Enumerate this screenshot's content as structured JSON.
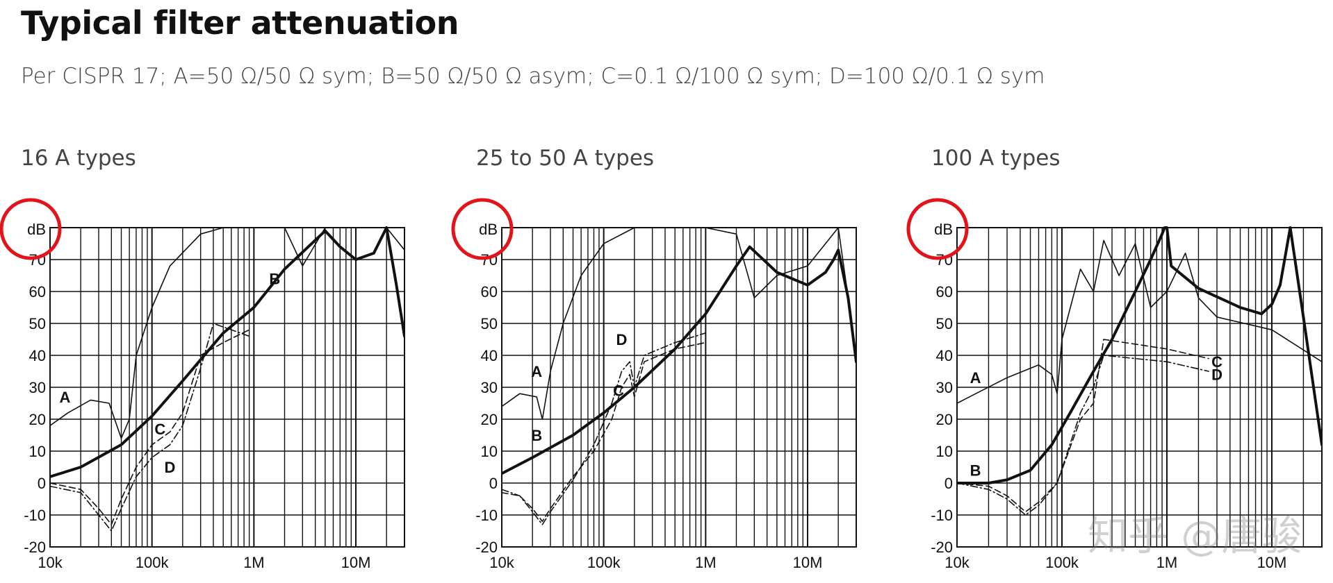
{
  "header": {
    "title": "Typical filter attenuation",
    "subtitle": "Per CISPR 17; A=50 Ω/50 Ω sym; B=50 Ω/50 Ω asym; C=0.1 Ω/100 Ω sym; D=100 Ω/0.1 Ω sym"
  },
  "watermark": "知乎 @唐骏",
  "colors": {
    "line": "#111111",
    "grid": "#111111",
    "highlight": "#e3131b",
    "text": "#444444"
  },
  "chart_data": [
    {
      "type": "line",
      "title": "16 A types",
      "ylabel": "dB",
      "xscale": "log",
      "xlim": [
        10000,
        30000000
      ],
      "ylim": [
        -20,
        80
      ],
      "x_ticks": [
        10000,
        100000,
        1000000,
        10000000
      ],
      "x_tick_labels": [
        "10k",
        "100k",
        "1M",
        "10M"
      ],
      "y_ticks": [
        -20,
        -10,
        0,
        10,
        20,
        30,
        40,
        50,
        60,
        70
      ],
      "y_tick_labels": [
        "-20",
        "-10",
        "0",
        "10",
        "20",
        "30",
        "40",
        "50",
        "60",
        "70"
      ],
      "grid": true,
      "series": [
        {
          "name": "A",
          "style": "thin",
          "x": [
            10000,
            15000,
            25000,
            38000,
            50000,
            60000,
            70000,
            100000,
            150000,
            300000,
            500000,
            1000000,
            2000000,
            3000000,
            5000000,
            10000000,
            20000000,
            30000000
          ],
          "y": [
            18,
            22,
            26,
            25,
            14,
            20,
            40,
            55,
            68,
            78,
            80,
            80,
            80,
            68,
            80,
            80,
            80,
            73
          ]
        },
        {
          "name": "B",
          "style": "thick",
          "x": [
            10000,
            20000,
            50000,
            100000,
            200000,
            500000,
            1000000,
            2000000,
            5000000,
            7000000,
            10000000,
            15000000,
            20000000,
            25000000,
            30000000
          ],
          "y": [
            2,
            5,
            12,
            21,
            32,
            47,
            55,
            67,
            79,
            74,
            70,
            72,
            80,
            62,
            46
          ]
        },
        {
          "name": "C",
          "style": "dashed",
          "x": [
            10000,
            20000,
            30000,
            40000,
            50000,
            70000,
            100000,
            150000,
            200000,
            300000,
            500000,
            900000
          ],
          "y": [
            0,
            -2,
            -8,
            -13,
            -5,
            5,
            12,
            16,
            22,
            40,
            44,
            48
          ]
        },
        {
          "name": "D",
          "style": "dashdot",
          "x": [
            10000,
            20000,
            30000,
            40000,
            50000,
            70000,
            100000,
            150000,
            200000,
            300000,
            400000,
            900000
          ],
          "y": [
            -1,
            -3,
            -10,
            -15,
            -8,
            2,
            8,
            12,
            18,
            36,
            50,
            46
          ]
        }
      ],
      "annotations": [
        {
          "text": "A",
          "x": 14000,
          "y": 27
        },
        {
          "text": "B",
          "x": 1600000,
          "y": 64
        },
        {
          "text": "C",
          "x": 120000,
          "y": 17
        },
        {
          "text": "D",
          "x": 150000,
          "y": 5
        }
      ]
    },
    {
      "type": "line",
      "title": "25 to 50 A types",
      "ylabel": "dB",
      "xscale": "log",
      "xlim": [
        10000,
        30000000
      ],
      "ylim": [
        -20,
        80
      ],
      "x_ticks": [
        10000,
        100000,
        1000000,
        10000000
      ],
      "x_tick_labels": [
        "10k",
        "100k",
        "1M",
        "10M"
      ],
      "y_ticks": [
        -20,
        -10,
        0,
        10,
        20,
        30,
        40,
        50,
        60,
        70
      ],
      "y_tick_labels": [
        "-20",
        "-10",
        "0",
        "10",
        "20",
        "30",
        "40",
        "50",
        "60",
        "70"
      ],
      "grid": true,
      "series": [
        {
          "name": "A",
          "style": "thin",
          "x": [
            10000,
            15000,
            22000,
            25000,
            30000,
            40000,
            60000,
            100000,
            200000,
            400000,
            1000000,
            2000000,
            3000000,
            5000000,
            10000000,
            20000000,
            30000000
          ],
          "y": [
            24,
            28,
            27,
            20,
            35,
            50,
            65,
            75,
            80,
            80,
            80,
            78,
            58,
            65,
            68,
            80,
            40
          ]
        },
        {
          "name": "B",
          "style": "thick",
          "x": [
            10000,
            20000,
            50000,
            100000,
            200000,
            500000,
            1000000,
            2000000,
            2700000,
            5000000,
            10000000,
            15000000,
            18000000,
            20000000,
            25000000,
            30000000
          ],
          "y": [
            3,
            8,
            15,
            22,
            30,
            42,
            53,
            68,
            74,
            66,
            62,
            66,
            70,
            73,
            58,
            38
          ]
        },
        {
          "name": "C",
          "style": "dashed",
          "x": [
            10000,
            15000,
            20000,
            25000,
            30000,
            50000,
            80000,
            120000,
            150000,
            180000,
            200000,
            250000,
            500000,
            1000000
          ],
          "y": [
            -3,
            -4,
            -8,
            -12,
            -8,
            2,
            10,
            20,
            30,
            34,
            27,
            38,
            42,
            44
          ]
        },
        {
          "name": "D",
          "style": "dashdot",
          "x": [
            10000,
            15000,
            20000,
            25000,
            30000,
            50000,
            80000,
            120000,
            150000,
            180000,
            200000,
            250000,
            500000,
            1000000
          ],
          "y": [
            -2,
            -4,
            -9,
            -13,
            -9,
            1,
            12,
            25,
            35,
            38,
            30,
            40,
            44,
            47
          ]
        }
      ],
      "annotations": [
        {
          "text": "A",
          "x": 22000,
          "y": 35
        },
        {
          "text": "B",
          "x": 22000,
          "y": 15
        },
        {
          "text": "C",
          "x": 140000,
          "y": 29
        },
        {
          "text": "D",
          "x": 150000,
          "y": 45
        }
      ]
    },
    {
      "type": "line",
      "title": "100 A types",
      "ylabel": "dB",
      "xscale": "log",
      "xlim": [
        10000,
        30000000
      ],
      "ylim": [
        -20,
        80
      ],
      "x_ticks": [
        10000,
        100000,
        1000000,
        10000000
      ],
      "x_tick_labels": [
        "10k",
        "100k",
        "1M",
        "10M"
      ],
      "y_ticks": [
        -20,
        -10,
        0,
        10,
        20,
        30,
        40,
        50,
        60,
        70
      ],
      "y_tick_labels": [
        "-20",
        "-10",
        "0",
        "10",
        "20",
        "30",
        "40",
        "50",
        "60",
        "70"
      ],
      "grid": true,
      "series": [
        {
          "name": "A",
          "style": "thin",
          "x": [
            10000,
            30000,
            60000,
            80000,
            90000,
            100000,
            150000,
            200000,
            250000,
            350000,
            500000,
            700000,
            1000000,
            1500000,
            2000000,
            3000000,
            10000000,
            30000000
          ],
          "y": [
            25,
            33,
            37,
            34,
            28,
            45,
            67,
            60,
            76,
            65,
            75,
            55,
            60,
            72,
            58,
            52,
            48,
            38
          ]
        },
        {
          "name": "B",
          "style": "thick",
          "x": [
            10000,
            20000,
            30000,
            50000,
            80000,
            120000,
            200000,
            300000,
            500000,
            700000,
            900000,
            950000,
            1000000,
            1100000,
            2000000,
            5000000,
            8000000,
            10000000,
            12000000,
            15000000,
            20000000,
            30000000
          ],
          "y": [
            0,
            0,
            1,
            4,
            12,
            22,
            35,
            45,
            60,
            70,
            78,
            80,
            80,
            68,
            61,
            55,
            53,
            56,
            62,
            80,
            52,
            12
          ]
        },
        {
          "name": "C",
          "style": "dashed",
          "x": [
            10000,
            20000,
            30000,
            45000,
            60000,
            90000,
            150000,
            200000,
            250000,
            1000000,
            2500000
          ],
          "y": [
            0,
            -1,
            -4,
            -9,
            -6,
            0,
            20,
            25,
            45,
            42,
            39
          ]
        },
        {
          "name": "D",
          "style": "dashdot",
          "x": [
            10000,
            20000,
            30000,
            45000,
            60000,
            90000,
            150000,
            200000,
            250000,
            1000000,
            2500000
          ],
          "y": [
            0,
            -2,
            -5,
            -10,
            -7,
            0,
            22,
            30,
            40,
            38,
            35
          ]
        }
      ],
      "annotations": [
        {
          "text": "A",
          "x": 15000,
          "y": 33
        },
        {
          "text": "B",
          "x": 15000,
          "y": 4
        },
        {
          "text": "C",
          "x": 3000000,
          "y": 38
        },
        {
          "text": "D",
          "x": 3000000,
          "y": 34
        }
      ]
    }
  ]
}
